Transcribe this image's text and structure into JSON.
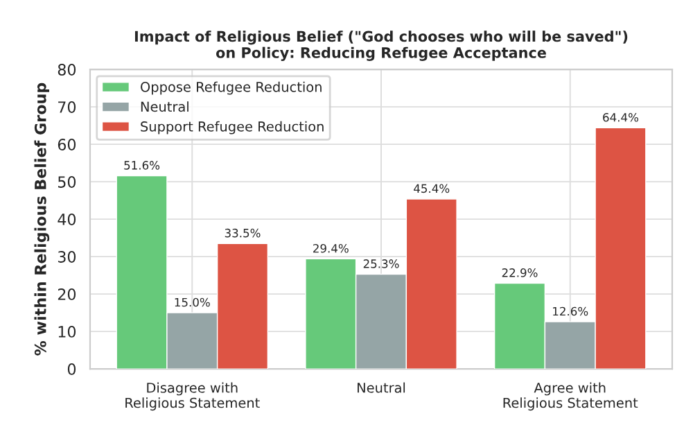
{
  "chart_data": {
    "type": "bar",
    "title": "Impact of Religious Belief (\"God chooses who will be saved\")\non Policy: Reducing Refugee Acceptance",
    "ylabel": "% within Religious Belief Group",
    "categories": [
      "Disagree with\nReligious Statement",
      "Neutral",
      "Agree with\nReligious Statement"
    ],
    "series": [
      {
        "name": "Oppose Refugee Reduction",
        "color": "#66c97a",
        "values": [
          51.6,
          29.4,
          22.9
        ],
        "value_labels": [
          "51.6%",
          "29.4%",
          "22.9%"
        ]
      },
      {
        "name": "Neutral",
        "color": "#95a5a6",
        "values": [
          15.0,
          25.3,
          12.6
        ],
        "value_labels": [
          "15.0%",
          "25.3%",
          "12.6%"
        ]
      },
      {
        "name": "Support Refugee Reduction",
        "color": "#dd5444",
        "values": [
          33.5,
          45.4,
          64.4
        ],
        "value_labels": [
          "33.5%",
          "45.4%",
          "64.4%"
        ]
      }
    ],
    "ylim": [
      0,
      80
    ],
    "yticks": [
      0,
      10,
      20,
      30,
      40,
      50,
      60,
      70,
      80
    ],
    "grid": true,
    "legend": "top left"
  }
}
